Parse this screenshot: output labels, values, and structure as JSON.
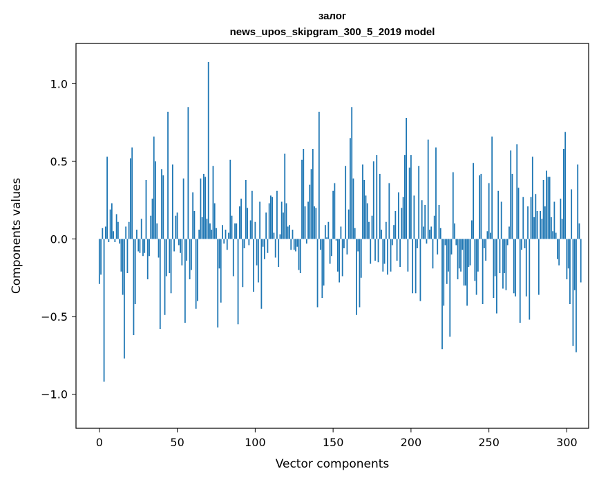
{
  "chart_data": {
    "type": "bar",
    "title": "залог",
    "subtitle": "news_upos_skipgram_300_5_2019 model",
    "xlabel": "Vector components",
    "ylabel": "Components values",
    "xlim": [
      -15,
      314
    ],
    "ylim": [
      -1.22,
      1.26
    ],
    "xticks": [
      0,
      50,
      100,
      150,
      200,
      250,
      300
    ],
    "yticks": [
      -1.0,
      -0.5,
      0.0,
      0.5,
      1.0
    ],
    "ytick_labels": [
      "−1.0",
      "−0.5",
      "0.0",
      "0.5",
      "1.0"
    ],
    "grid": false,
    "legend": "none",
    "bar_color": "#1f77b4",
    "values": [
      -0.29,
      -0.23,
      0.07,
      -0.92,
      0.08,
      0.53,
      -0.02,
      0.19,
      0.23,
      0.05,
      -0.02,
      0.16,
      0.11,
      -0.03,
      -0.21,
      -0.36,
      -0.77,
      0.08,
      -0.22,
      0.11,
      0.52,
      0.59,
      -0.62,
      -0.42,
      0.06,
      -0.08,
      -0.09,
      0.13,
      -0.11,
      -0.09,
      0.38,
      -0.26,
      -0.11,
      0.15,
      0.26,
      0.66,
      0.5,
      0.1,
      -0.12,
      -0.58,
      0.45,
      0.41,
      -0.49,
      -0.24,
      0.82,
      -0.22,
      -0.35,
      0.48,
      -0.08,
      0.15,
      0.17,
      -0.04,
      -0.09,
      -0.17,
      0.39,
      -0.54,
      -0.14,
      0.85,
      -0.26,
      -0.2,
      0.3,
      0.18,
      -0.45,
      -0.4,
      0.06,
      0.39,
      0.14,
      0.42,
      0.4,
      0.13,
      1.14,
      0.1,
      0.06,
      0.47,
      0.23,
      0.07,
      -0.57,
      -0.19,
      -0.41,
      0.09,
      -0.03,
      0.06,
      -0.07,
      0.04,
      0.51,
      0.15,
      -0.24,
      0.1,
      0.1,
      -0.55,
      0.21,
      0.26,
      -0.31,
      -0.06,
      0.38,
      0.2,
      -0.04,
      0.12,
      0.31,
      -0.34,
      0.11,
      -0.17,
      -0.28,
      0.24,
      -0.45,
      -0.05,
      -0.13,
      0.17,
      -0.09,
      0.23,
      0.28,
      0.27,
      0.04,
      -0.12,
      0.31,
      -0.18,
      0.03,
      0.24,
      0.17,
      0.55,
      0.23,
      0.08,
      0.09,
      -0.07,
      0.06,
      -0.07,
      -0.08,
      -0.05,
      -0.2,
      -0.22,
      0.51,
      0.58,
      0.21,
      -0.03,
      0.24,
      0.35,
      0.45,
      0.58,
      0.21,
      0.2,
      -0.44,
      0.82,
      -0.07,
      -0.38,
      -0.3,
      0.09,
      0.01,
      0.11,
      -0.16,
      -0.11,
      0.31,
      0.36,
      -0.01,
      -0.21,
      -0.28,
      0.08,
      -0.24,
      -0.06,
      0.47,
      -0.1,
      0.19,
      0.65,
      0.85,
      0.39,
      0.07,
      -0.49,
      -0.08,
      -0.44,
      -0.25,
      0.48,
      0.38,
      0.28,
      0.23,
      0.11,
      -0.16,
      0.15,
      0.5,
      -0.14,
      0.54,
      -0.15,
      0.42,
      0.06,
      -0.21,
      -0.16,
      0.11,
      -0.23,
      0.36,
      -0.21,
      -0.04,
      0.09,
      0.18,
      -0.14,
      0.3,
      -0.18,
      0.2,
      0.27,
      0.54,
      0.78,
      -0.21,
      0.46,
      0.54,
      -0.35,
      0.28,
      -0.35,
      -0.06,
      0.47,
      -0.4,
      0.25,
      0.08,
      0.22,
      -0.03,
      0.64,
      0.06,
      0.08,
      -0.19,
      0.15,
      0.59,
      -0.1,
      0.22,
      0.07,
      -0.71,
      -0.43,
      -0.04,
      -0.29,
      -0.21,
      -0.63,
      -0.1,
      0.43,
      0.1,
      -0.04,
      -0.26,
      -0.19,
      -0.21,
      -0.07,
      -0.3,
      -0.3,
      -0.43,
      -0.18,
      -0.17,
      0.12,
      0.49,
      -0.27,
      -0.36,
      -0.21,
      0.41,
      0.42,
      -0.42,
      -0.06,
      -0.14,
      0.05,
      0.36,
      0.04,
      0.66,
      -0.38,
      -0.24,
      -0.48,
      0.31,
      -0.22,
      0.24,
      -0.32,
      -0.22,
      -0.33,
      -0.04,
      0.08,
      0.57,
      0.42,
      -0.35,
      -0.37,
      0.61,
      0.33,
      -0.54,
      -0.07,
      0.27,
      -0.06,
      -0.37,
      0.21,
      -0.52,
      0.27,
      0.53,
      0.14,
      0.29,
      0.18,
      -0.36,
      0.18,
      0.13,
      0.38,
      0.21,
      0.44,
      0.4,
      0.4,
      0.14,
      0.05,
      0.24,
      0.04,
      -0.13,
      -0.17,
      0.26,
      0.13,
      0.58,
      0.69,
      -0.26,
      -0.19,
      -0.42,
      0.32,
      -0.69,
      -0.33,
      -0.73,
      0.48,
      0.1,
      -0.28
    ]
  }
}
